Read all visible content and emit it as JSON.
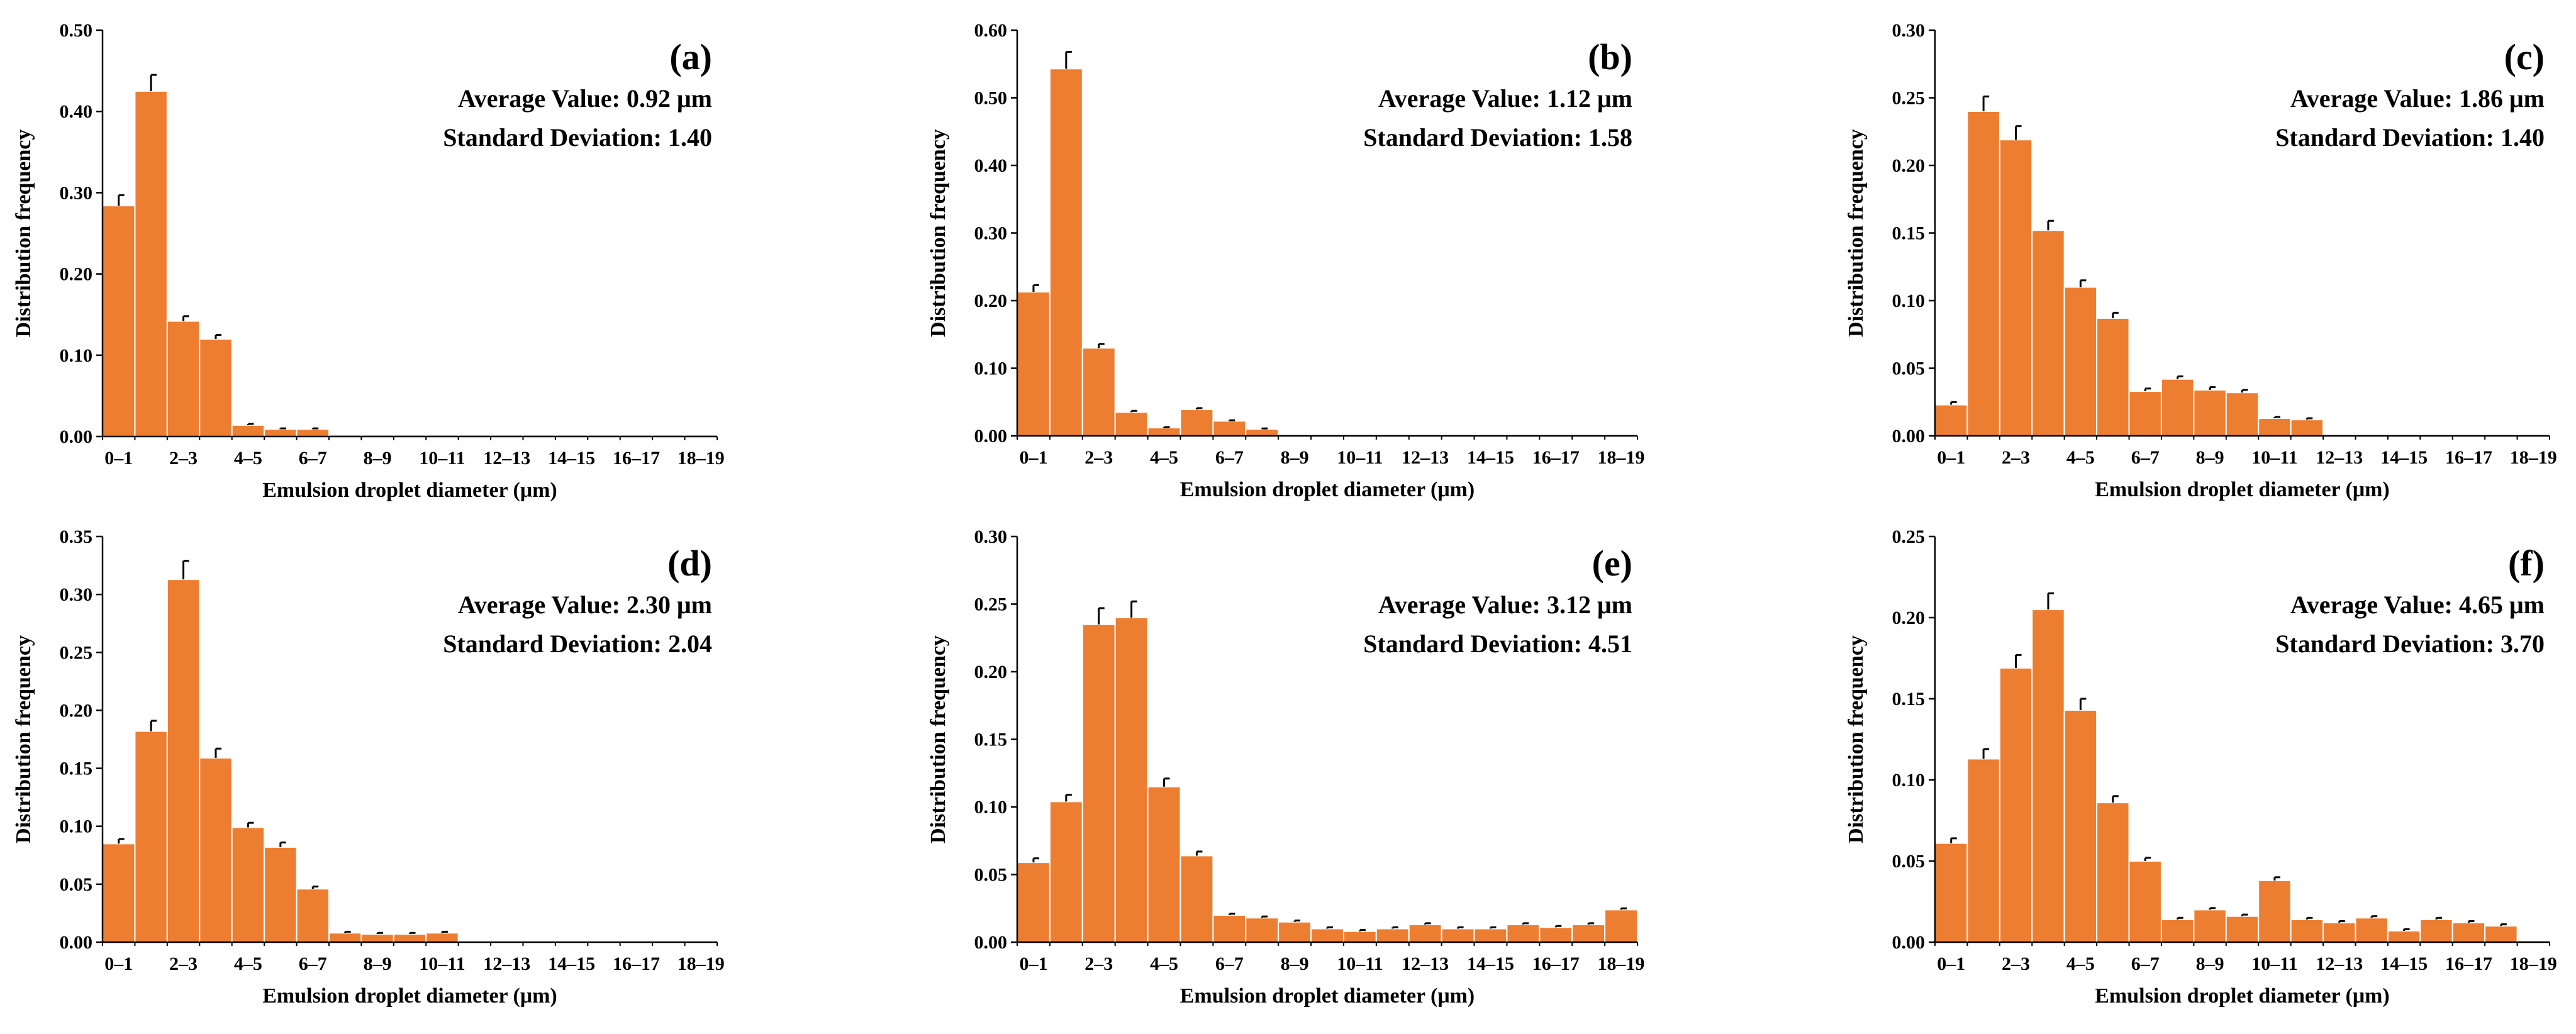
{
  "chart_data": [
    {
      "type": "bar",
      "panel": "(a)",
      "categories": [
        "0–1",
        "1–2",
        "2–3",
        "3–4",
        "4–5",
        "5–6",
        "6–7",
        "7–8",
        "8–9",
        "9–10",
        "10–11",
        "11–12",
        "12–13",
        "13–14",
        "14–15",
        "15–16",
        "16–17",
        "17–18",
        "18–19"
      ],
      "tick_labels": [
        "0–1",
        "2–3",
        "4–5",
        "6–7",
        "8–9",
        "10–11",
        "12–13",
        "14–15",
        "16–17",
        "18–19"
      ],
      "values": [
        0.284,
        0.425,
        0.142,
        0.12,
        0.014,
        0.009,
        0.009,
        0.002,
        0.002,
        0.002,
        0.002,
        0.002,
        0.002,
        0.002,
        0.002,
        0.002,
        0.002,
        0.002,
        0.002
      ],
      "errors": [
        0.013,
        0.02,
        0.006,
        0.005,
        0.0015,
        0.001,
        0.001,
        0,
        0,
        0,
        0,
        0,
        0,
        0,
        0,
        0,
        0,
        0,
        0
      ],
      "ylim": [
        0,
        0.5
      ],
      "yticks": [
        0,
        0.1,
        0.2,
        0.3,
        0.4,
        0.5
      ],
      "ytick_labels": [
        "0.00",
        "0.10",
        "0.20",
        "0.30",
        "0.40",
        "0.50"
      ],
      "xlabel": "Emulsion droplet diameter (μm)",
      "ylabel": "Distribution frequency",
      "average_text": "Average Value: 0.92 μm",
      "std_text": "Standard Deviation: 1.40"
    },
    {
      "type": "bar",
      "panel": "(b)",
      "categories": [
        "0–1",
        "1–2",
        "2–3",
        "3–4",
        "4–5",
        "5–6",
        "6–7",
        "7–8",
        "8–9",
        "9–10",
        "10–11",
        "11–12",
        "12–13",
        "13–14",
        "14–15",
        "15–16",
        "16–17",
        "17–18",
        "18–19"
      ],
      "tick_labels": [
        "0–1",
        "2–3",
        "4–5",
        "6–7",
        "8–9",
        "10–11",
        "12–13",
        "14–15",
        "16–17",
        "18–19"
      ],
      "values": [
        0.213,
        0.543,
        0.13,
        0.035,
        0.012,
        0.039,
        0.022,
        0.01,
        0.002,
        0.002,
        0.002,
        0.002,
        0.002,
        0.002,
        0.002,
        0.002,
        0.002,
        0.002,
        0.002
      ],
      "errors": [
        0.01,
        0.025,
        0.006,
        0.002,
        0.001,
        0.002,
        0.001,
        0.001,
        0,
        0,
        0,
        0,
        0,
        0,
        0,
        0,
        0,
        0,
        0
      ],
      "ylim": [
        0,
        0.6
      ],
      "yticks": [
        0,
        0.1,
        0.2,
        0.3,
        0.4,
        0.5,
        0.6
      ],
      "ytick_labels": [
        "0.00",
        "0.10",
        "0.20",
        "0.30",
        "0.40",
        "0.50",
        "0.60"
      ],
      "xlabel": "Emulsion droplet diameter (μm)",
      "ylabel": "Distribution frequency",
      "average_text": "Average Value: 1.12 μm",
      "std_text": "Standard Deviation: 1.58"
    },
    {
      "type": "bar",
      "panel": "(c)",
      "categories": [
        "0–1",
        "1–2",
        "2–3",
        "3–4",
        "4–5",
        "5–6",
        "6–7",
        "7–8",
        "8–9",
        "9–10",
        "10–11",
        "11–12",
        "12–13",
        "13–14",
        "14–15",
        "15–16",
        "16–17",
        "17–18",
        "18–19"
      ],
      "tick_labels": [
        "0–1",
        "2–3",
        "4–5",
        "6–7",
        "8–9",
        "10–11",
        "12–13",
        "14–15",
        "16–17",
        "18–19"
      ],
      "values": [
        0.023,
        0.24,
        0.219,
        0.152,
        0.11,
        0.087,
        0.033,
        0.042,
        0.034,
        0.032,
        0.013,
        0.012,
        0.001,
        0.001,
        0.001,
        0.001,
        0.001,
        0.001,
        0.001
      ],
      "errors": [
        0.002,
        0.011,
        0.01,
        0.007,
        0.005,
        0.004,
        0.002,
        0.002,
        0.002,
        0.002,
        0.001,
        0.001,
        0,
        0,
        0,
        0,
        0,
        0,
        0
      ],
      "ylim": [
        0,
        0.3
      ],
      "yticks": [
        0,
        0.05,
        0.1,
        0.15,
        0.2,
        0.25,
        0.3
      ],
      "ytick_labels": [
        "0.00",
        "0.05",
        "0.10",
        "0.15",
        "0.20",
        "0.25",
        "0.30"
      ],
      "xlabel": "Emulsion droplet diameter (μm)",
      "ylabel": "Distribution frequency",
      "average_text": "Average Value: 1.86 μm",
      "std_text": "Standard Deviation: 1.40"
    },
    {
      "type": "bar",
      "panel": "(d)",
      "categories": [
        "0–1",
        "1–2",
        "2–3",
        "3–4",
        "4–5",
        "5–6",
        "6–7",
        "7–8",
        "8–9",
        "9–10",
        "10–11",
        "11–12",
        "12–13",
        "13–14",
        "14–15",
        "15–16",
        "16–17",
        "17–18",
        "18–19"
      ],
      "tick_labels": [
        "0–1",
        "2–3",
        "4–5",
        "6–7",
        "8–9",
        "10–11",
        "12–13",
        "14–15",
        "16–17",
        "18–19"
      ],
      "values": [
        0.085,
        0.182,
        0.313,
        0.159,
        0.099,
        0.082,
        0.046,
        0.008,
        0.007,
        0.007,
        0.008,
        0.001,
        0.001,
        0.001,
        0.001,
        0.001,
        0.001,
        0.001,
        0.001
      ],
      "errors": [
        0.004,
        0.009,
        0.016,
        0.008,
        0.004,
        0.004,
        0.002,
        0.001,
        0.001,
        0.001,
        0.001,
        0,
        0,
        0,
        0,
        0,
        0,
        0,
        0
      ],
      "ylim": [
        0,
        0.35
      ],
      "yticks": [
        0,
        0.05,
        0.1,
        0.15,
        0.2,
        0.25,
        0.3,
        0.35
      ],
      "ytick_labels": [
        "0.00",
        "0.05",
        "0.10",
        "0.15",
        "0.20",
        "0.25",
        "0.30",
        "0.35"
      ],
      "xlabel": "Emulsion droplet diameter (μm)",
      "ylabel": "Distribution frequency",
      "average_text": "Average Value: 2.30 μm",
      "std_text": "Standard Deviation: 2.04"
    },
    {
      "type": "bar",
      "panel": "(e)",
      "categories": [
        "0–1",
        "1–2",
        "2–3",
        "3–4",
        "4–5",
        "5–6",
        "6–7",
        "7–8",
        "8–9",
        "9–10",
        "10–11",
        "11–12",
        "12–13",
        "13–14",
        "14–15",
        "15–16",
        "16–17",
        "17–18",
        "18–19"
      ],
      "tick_labels": [
        "0–1",
        "2–3",
        "4–5",
        "6–7",
        "8–9",
        "10–11",
        "12–13",
        "14–15",
        "16–17",
        "18–19"
      ],
      "values": [
        0.059,
        0.104,
        0.235,
        0.24,
        0.115,
        0.064,
        0.02,
        0.018,
        0.015,
        0.01,
        0.008,
        0.01,
        0.013,
        0.01,
        0.01,
        0.013,
        0.011,
        0.013,
        0.024
      ],
      "errors": [
        0.003,
        0.005,
        0.012,
        0.012,
        0.006,
        0.003,
        0.001,
        0.001,
        0.001,
        0.001,
        0.001,
        0.001,
        0.001,
        0.001,
        0.001,
        0.001,
        0.001,
        0.001,
        0.001
      ],
      "ylim": [
        0,
        0.3
      ],
      "yticks": [
        0,
        0.05,
        0.1,
        0.15,
        0.2,
        0.25,
        0.3
      ],
      "ytick_labels": [
        "0.00",
        "0.05",
        "0.10",
        "0.15",
        "0.20",
        "0.25",
        "0.30"
      ],
      "xlabel": "Emulsion droplet diameter (μm)",
      "ylabel": "Distribution frequency",
      "average_text": "Average Value: 3.12 μm",
      "std_text": "Standard Deviation: 4.51"
    },
    {
      "type": "bar",
      "panel": "(f)",
      "categories": [
        "0–1",
        "1–2",
        "2–3",
        "3–4",
        "4–5",
        "5–6",
        "6–7",
        "7–8",
        "8–9",
        "9–10",
        "10–11",
        "11–12",
        "12–13",
        "13–14",
        "14–15",
        "15–16",
        "16–17",
        "17–18",
        "18–19"
      ],
      "tick_labels": [
        "0–1",
        "2–3",
        "4–5",
        "6–7",
        "8–9",
        "10–11",
        "12–13",
        "14–15",
        "16–17",
        "18–19"
      ],
      "values": [
        0.061,
        0.113,
        0.169,
        0.205,
        0.143,
        0.086,
        0.05,
        0.014,
        0.02,
        0.016,
        0.038,
        0.014,
        0.012,
        0.015,
        0.007,
        0.014,
        0.012,
        0.01,
        0.001
      ],
      "errors": [
        0.003,
        0.006,
        0.008,
        0.01,
        0.007,
        0.004,
        0.002,
        0.001,
        0.001,
        0.001,
        0.002,
        0.001,
        0.001,
        0.001,
        0.001,
        0.001,
        0.001,
        0.001,
        0
      ],
      "ylim": [
        0,
        0.25
      ],
      "yticks": [
        0,
        0.05,
        0.1,
        0.15,
        0.2,
        0.25
      ],
      "ytick_labels": [
        "0.00",
        "0.05",
        "0.10",
        "0.15",
        "0.20",
        "0.25"
      ],
      "xlabel": "Emulsion droplet diameter (μm)",
      "ylabel": "Distribution frequency",
      "average_text": "Average Value: 4.65 μm",
      "std_text": "Standard Deviation: 3.70"
    }
  ],
  "colors": {
    "bar_fill": "#ED7D31",
    "bar_edge": "#FFFFFF",
    "axis": "#000000",
    "error_bar": "#000000"
  }
}
